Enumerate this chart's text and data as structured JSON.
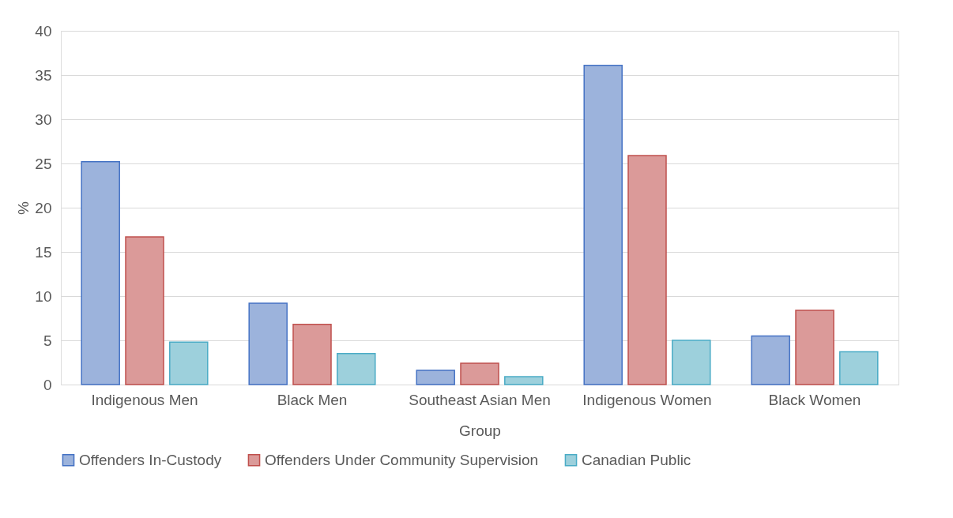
{
  "chart_data": {
    "type": "bar",
    "xlabel": "Group",
    "ylabel": "%",
    "categories": [
      "Indigenous Men",
      "Black Men",
      "Southeast Asian Men",
      "Indigenous Women",
      "Black Women"
    ],
    "series": [
      {
        "name": "Offenders In-Custody",
        "color": "#9cb3dc",
        "values": [
          25.2,
          9.2,
          1.6,
          36.1,
          5.5
        ]
      },
      {
        "name": "Offenders Under Community Supervision",
        "color": "#db9a99",
        "values": [
          16.7,
          6.8,
          2.4,
          25.9,
          8.4
        ]
      },
      {
        "name": "Canadian Public",
        "color": "#9dd0dc",
        "values": [
          4.8,
          3.5,
          0.9,
          5.0,
          3.7
        ]
      }
    ],
    "ylim": [
      0,
      40
    ],
    "yticks": [
      0,
      5,
      10,
      15,
      20,
      25,
      30,
      35,
      40
    ],
    "grid": "y",
    "legend": "bottom"
  }
}
